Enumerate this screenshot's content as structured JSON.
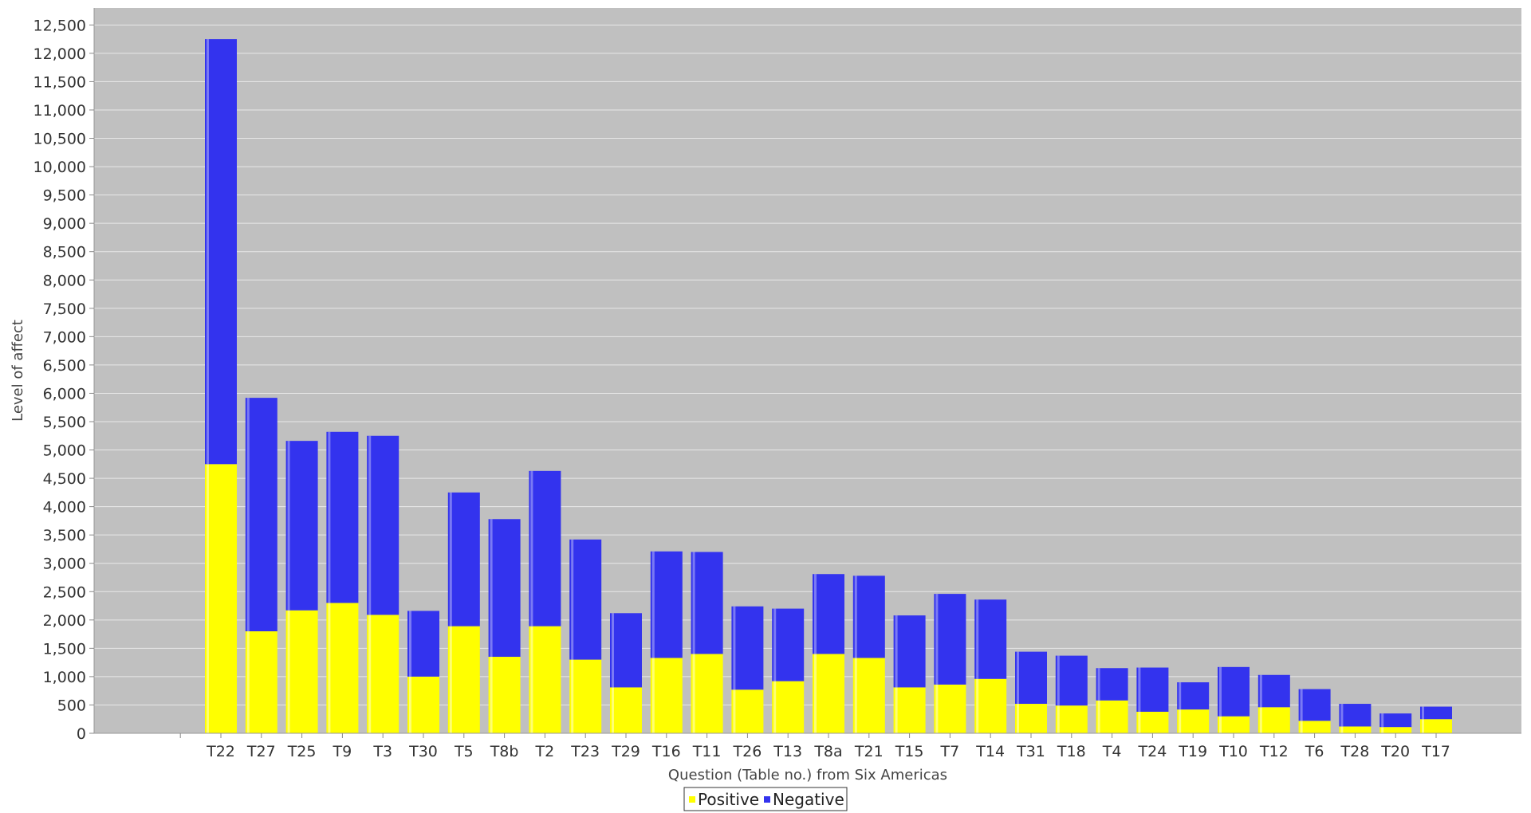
{
  "chart_data": {
    "type": "bar",
    "stacked": true,
    "xlabel": "Question (Table no.) from Six Americas",
    "ylabel": "Level of affect",
    "ylim": [
      0,
      12800
    ],
    "yticks": [
      0,
      500,
      1000,
      1500,
      2000,
      2500,
      3000,
      3500,
      4000,
      4500,
      5000,
      5500,
      6000,
      6500,
      7000,
      7500,
      8000,
      8500,
      9000,
      9500,
      10000,
      10500,
      11000,
      11500,
      12000,
      12500
    ],
    "ytick_labels": [
      "0",
      "500",
      "1,000",
      "1,500",
      "2,000",
      "2,500",
      "3,000",
      "3,500",
      "4,000",
      "4,500",
      "5,000",
      "5,500",
      "6,000",
      "6,500",
      "7,000",
      "7,500",
      "8,000",
      "8,500",
      "9,000",
      "9,500",
      "10,000",
      "10,500",
      "11,000",
      "11,500",
      "12,000",
      "12,500"
    ],
    "grid": true,
    "legend_position": "bottom-center",
    "background_color": "#c0c0c0",
    "categories": [
      "T22",
      "T27",
      "T25",
      "T9",
      "T3",
      "T30",
      "T5",
      "T8b",
      "T2",
      "T23",
      "T29",
      "T16",
      "T11",
      "T26",
      "T13",
      "T8a",
      "T21",
      "T15",
      "T7",
      "T14",
      "T31",
      "T18",
      "T4",
      "T24",
      "T19",
      "T10",
      "T12",
      "T6",
      "T28",
      "T20",
      "T17"
    ],
    "series": [
      {
        "name": "Positive",
        "color": "#ffff00",
        "values": [
          4750,
          1800,
          2170,
          2300,
          2090,
          1000,
          1890,
          1350,
          1890,
          1300,
          810,
          1330,
          1400,
          770,
          920,
          1400,
          1330,
          810,
          860,
          960,
          520,
          490,
          580,
          380,
          420,
          300,
          460,
          220,
          120,
          110,
          250
        ]
      },
      {
        "name": "Negative",
        "color": "#3333ee",
        "values": [
          7500,
          4120,
          2990,
          3020,
          3160,
          1160,
          2360,
          2430,
          2740,
          2120,
          1310,
          1880,
          1800,
          1470,
          1280,
          1410,
          1450,
          1270,
          1600,
          1400,
          920,
          880,
          570,
          780,
          480,
          870,
          570,
          560,
          400,
          240,
          220
        ]
      }
    ]
  }
}
